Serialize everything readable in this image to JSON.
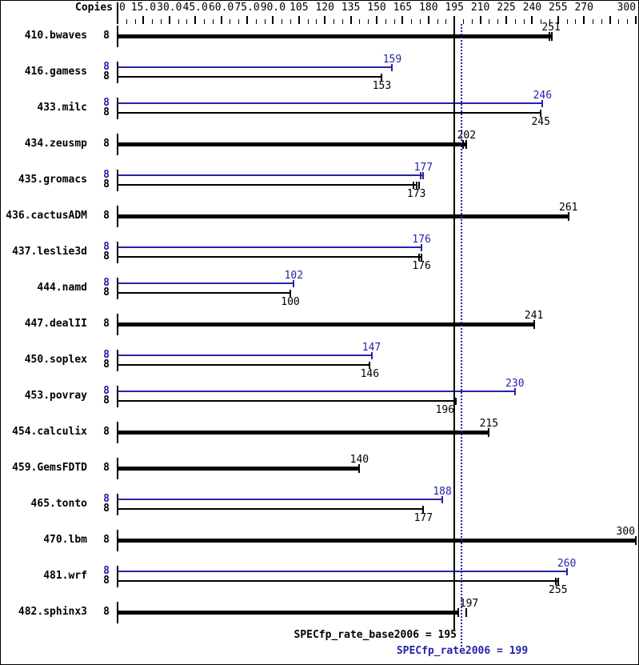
{
  "header": {
    "copies_label": "Copies"
  },
  "summary": {
    "base_label": "SPECfp_rate_base2006 = 195",
    "peak_label": "SPECfp_rate2006 = 199"
  },
  "colors": {
    "base": "#000000",
    "peak": "#2424aa",
    "background": "#ffffff"
  },
  "chart_data": {
    "type": "bar",
    "orientation": "horizontal",
    "title": "",
    "xlabel": "",
    "ylabel": "Copies",
    "xlim": [
      0,
      300
    ],
    "minor_tick_step": 5,
    "major_tick_step": 15,
    "grid": false,
    "x_ticks": [
      {
        "v": 0,
        "label": "0"
      },
      {
        "v": 15,
        "label": "15.0"
      },
      {
        "v": 30,
        "label": "30.0"
      },
      {
        "v": 45,
        "label": "45.0"
      },
      {
        "v": 60,
        "label": "60.0"
      },
      {
        "v": 75,
        "label": "75.0"
      },
      {
        "v": 90,
        "label": "90.0"
      },
      {
        "v": 105,
        "label": "105"
      },
      {
        "v": 120,
        "label": "120"
      },
      {
        "v": 135,
        "label": "135"
      },
      {
        "v": 150,
        "label": "150"
      },
      {
        "v": 165,
        "label": "165"
      },
      {
        "v": 180,
        "label": "180"
      },
      {
        "v": 195,
        "label": "195"
      },
      {
        "v": 210,
        "label": "210"
      },
      {
        "v": 225,
        "label": "225"
      },
      {
        "v": 240,
        "label": "240"
      },
      {
        "v": 255,
        "label": "255"
      },
      {
        "v": 270,
        "label": "270"
      },
      {
        "v": 300,
        "label": "300"
      }
    ],
    "reference_lines": [
      {
        "name": "base-mean",
        "value": 195,
        "style": "solid",
        "series": "base"
      },
      {
        "name": "peak-mean",
        "value": 199,
        "style": "dotted",
        "series": "peak"
      }
    ],
    "benchmarks": [
      {
        "name": "410.bwaves",
        "bars": [
          {
            "series": "base",
            "copies": "8",
            "value": 251,
            "thick": true,
            "run_ticks": [
              250,
              251.5
            ]
          }
        ]
      },
      {
        "name": "416.gamess",
        "bars": [
          {
            "series": "peak",
            "copies": "8",
            "value": 159,
            "run_ticks": [
              159
            ]
          },
          {
            "series": "base",
            "copies": "8",
            "value": 153,
            "run_ticks": [
              153
            ]
          }
        ]
      },
      {
        "name": "433.milc",
        "bars": [
          {
            "series": "peak",
            "copies": "8",
            "value": 246,
            "run_ticks": [
              246
            ]
          },
          {
            "series": "base",
            "copies": "8",
            "value": 245,
            "run_ticks": [
              245
            ]
          }
        ]
      },
      {
        "name": "434.zeusmp",
        "bars": [
          {
            "series": "base",
            "copies": "8",
            "value": 202,
            "thick": true,
            "run_ticks": [
              200,
              202
            ]
          }
        ]
      },
      {
        "name": "435.gromacs",
        "bars": [
          {
            "series": "peak",
            "copies": "8",
            "value": 177,
            "run_ticks": [
              175.5,
              177
            ]
          },
          {
            "series": "base",
            "copies": "8",
            "value": 173,
            "run_ticks": [
              171.5,
              173,
              174.5
            ]
          }
        ]
      },
      {
        "name": "436.cactusADM",
        "bars": [
          {
            "series": "base",
            "copies": "8",
            "value": 261,
            "thick": true,
            "run_ticks": [
              261
            ]
          }
        ]
      },
      {
        "name": "437.leslie3d",
        "bars": [
          {
            "series": "peak",
            "copies": "8",
            "value": 176,
            "run_ticks": [
              176
            ]
          },
          {
            "series": "base",
            "copies": "8",
            "value": 176,
            "run_ticks": [
              174.5,
              176
            ]
          }
        ]
      },
      {
        "name": "444.namd",
        "bars": [
          {
            "series": "peak",
            "copies": "8",
            "value": 102,
            "run_ticks": [
              102
            ]
          },
          {
            "series": "base",
            "copies": "8",
            "value": 100,
            "run_ticks": [
              100
            ]
          }
        ]
      },
      {
        "name": "447.dealII",
        "bars": [
          {
            "series": "base",
            "copies": "8",
            "value": 241,
            "thick": true,
            "run_ticks": [
              241
            ]
          }
        ]
      },
      {
        "name": "450.soplex",
        "bars": [
          {
            "series": "peak",
            "copies": "8",
            "value": 147,
            "run_ticks": [
              147
            ]
          },
          {
            "series": "base",
            "copies": "8",
            "value": 146,
            "run_ticks": [
              146
            ]
          }
        ]
      },
      {
        "name": "453.povray",
        "bars": [
          {
            "series": "peak",
            "copies": "8",
            "value": 230,
            "run_ticks": [
              230
            ]
          },
          {
            "series": "base",
            "copies": "8",
            "value": 196,
            "run_ticks": [
              196
            ],
            "label_dx": -14
          }
        ]
      },
      {
        "name": "454.calculix",
        "bars": [
          {
            "series": "base",
            "copies": "8",
            "value": 215,
            "thick": true,
            "run_ticks": [
              215
            ]
          }
        ]
      },
      {
        "name": "459.GemsFDTD",
        "bars": [
          {
            "series": "base",
            "copies": "8",
            "value": 140,
            "thick": true,
            "run_ticks": [
              140
            ]
          }
        ]
      },
      {
        "name": "465.tonto",
        "bars": [
          {
            "series": "peak",
            "copies": "8",
            "value": 188,
            "run_ticks": [
              188
            ]
          },
          {
            "series": "base",
            "copies": "8",
            "value": 177,
            "run_ticks": [
              177
            ]
          }
        ]
      },
      {
        "name": "470.lbm",
        "bars": [
          {
            "series": "base",
            "copies": "8",
            "value": 300,
            "thick": true,
            "run_ticks": [
              300
            ]
          }
        ]
      },
      {
        "name": "481.wrf",
        "bars": [
          {
            "series": "peak",
            "copies": "8",
            "value": 260,
            "run_ticks": [
              260
            ]
          },
          {
            "series": "base",
            "copies": "8",
            "value": 255,
            "run_ticks": [
              253.5,
              255
            ]
          }
        ]
      },
      {
        "name": "482.sphinx3",
        "bars": [
          {
            "series": "base",
            "copies": "8",
            "value": 197,
            "thick": true,
            "run_ticks": [
              197,
              202
            ],
            "label_dx": 14
          }
        ]
      }
    ]
  }
}
